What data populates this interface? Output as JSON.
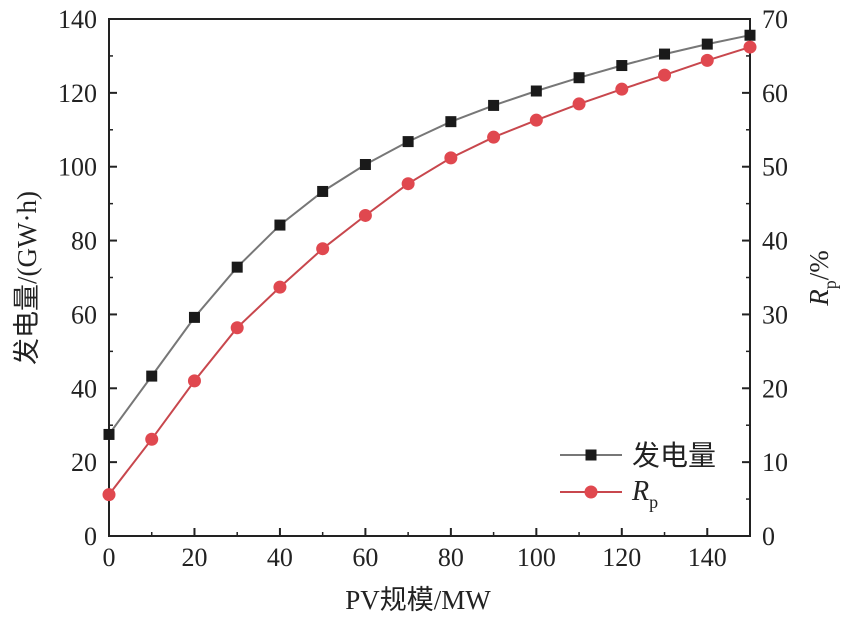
{
  "chart_data": {
    "type": "line",
    "xlabel": "PV规模/MW",
    "ylabel_left": "发电量/(GW·h)",
    "ylabel_right": {
      "main": "R",
      "sub": "p",
      "suffix": "/%"
    },
    "xlim": [
      0,
      150
    ],
    "ylim_left": [
      0,
      140
    ],
    "ylim_right": [
      0,
      70
    ],
    "x_ticks": [
      0,
      20,
      40,
      60,
      80,
      100,
      120,
      140
    ],
    "y_left_ticks": [
      0,
      20,
      40,
      60,
      80,
      100,
      120,
      140
    ],
    "y_right_ticks": [
      0,
      10,
      20,
      30,
      40,
      50,
      60,
      70
    ],
    "x": [
      0,
      10,
      20,
      30,
      40,
      50,
      60,
      70,
      80,
      90,
      100,
      110,
      120,
      130,
      140,
      150
    ],
    "grid": false,
    "legend_position": "bottom-right",
    "series": [
      {
        "name": "发电量",
        "axis": "left",
        "marker": "square",
        "color": "#1a1a1a",
        "line_color": "#777777",
        "values": [
          27.5,
          43.3,
          59.2,
          72.8,
          84.2,
          93.3,
          100.6,
          106.8,
          112.2,
          116.6,
          120.5,
          124.1,
          127.4,
          130.5,
          133.2,
          135.6
        ]
      },
      {
        "name": "R",
        "name_sub": "p",
        "axis": "right",
        "marker": "circle",
        "color": "#e0484f",
        "line_color": "#c8474d",
        "values": [
          5.6,
          13.1,
          21.0,
          28.2,
          33.7,
          38.9,
          43.4,
          47.7,
          51.2,
          54.0,
          56.3,
          58.5,
          60.5,
          62.4,
          64.4,
          66.2
        ]
      }
    ]
  }
}
